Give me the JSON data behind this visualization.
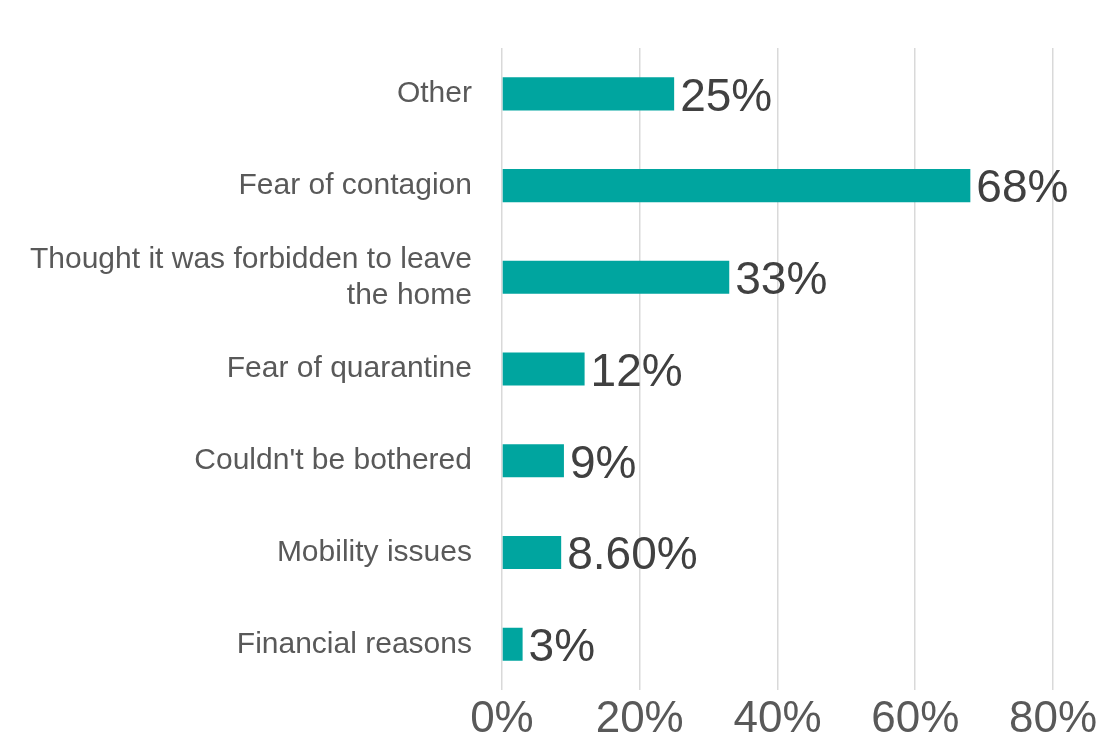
{
  "chart_data": {
    "type": "bar",
    "orientation": "horizontal",
    "categories": [
      "Other",
      "Fear of contagion",
      "Thought it was forbidden to leave the home",
      "Fear of quarantine",
      "Couldn't be bothered",
      "Mobility issues",
      "Financial reasons"
    ],
    "values": [
      25,
      68,
      33,
      12,
      9,
      8.6,
      3
    ],
    "value_labels": [
      "25%",
      "68%",
      "33%",
      "12%",
      "9%",
      "8.60%",
      "3%"
    ],
    "color": "#00a59f",
    "xlim": [
      0,
      80
    ],
    "xticks": [
      {
        "value": 0,
        "label": "0%"
      },
      {
        "value": 20,
        "label": "20%"
      },
      {
        "value": 40,
        "label": "40%"
      },
      {
        "value": 60,
        "label": "60%"
      },
      {
        "value": 80,
        "label": "80%"
      }
    ],
    "grid": "x",
    "legend": false
  }
}
